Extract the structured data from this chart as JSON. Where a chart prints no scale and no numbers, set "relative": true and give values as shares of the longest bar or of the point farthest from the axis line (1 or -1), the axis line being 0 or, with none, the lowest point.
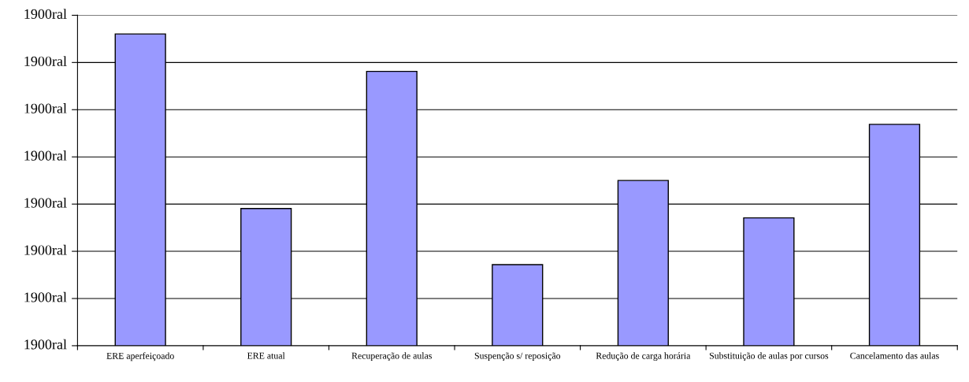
{
  "chart_data": {
    "type": "bar",
    "categories": [
      "ERE aperfeiçoado",
      "ERE atual",
      "Recuperação de aulas",
      "Suspenção s/ reposição",
      "Redução de carga horária",
      "Substituição de aulas por cursos",
      "Cancelamento das aulas"
    ],
    "values": [
      1,
      0.44,
      0.88,
      0.26,
      0.53,
      0.41,
      0.71
    ],
    "relative": true,
    "color": "#9999ff",
    "annotations": [
      "1900ral",
      "1900ral",
      "1900ral",
      "1900ral",
      "1900ral",
      "1900ral",
      "1900ral",
      "1900ral"
    ],
    "grid": "y"
  }
}
